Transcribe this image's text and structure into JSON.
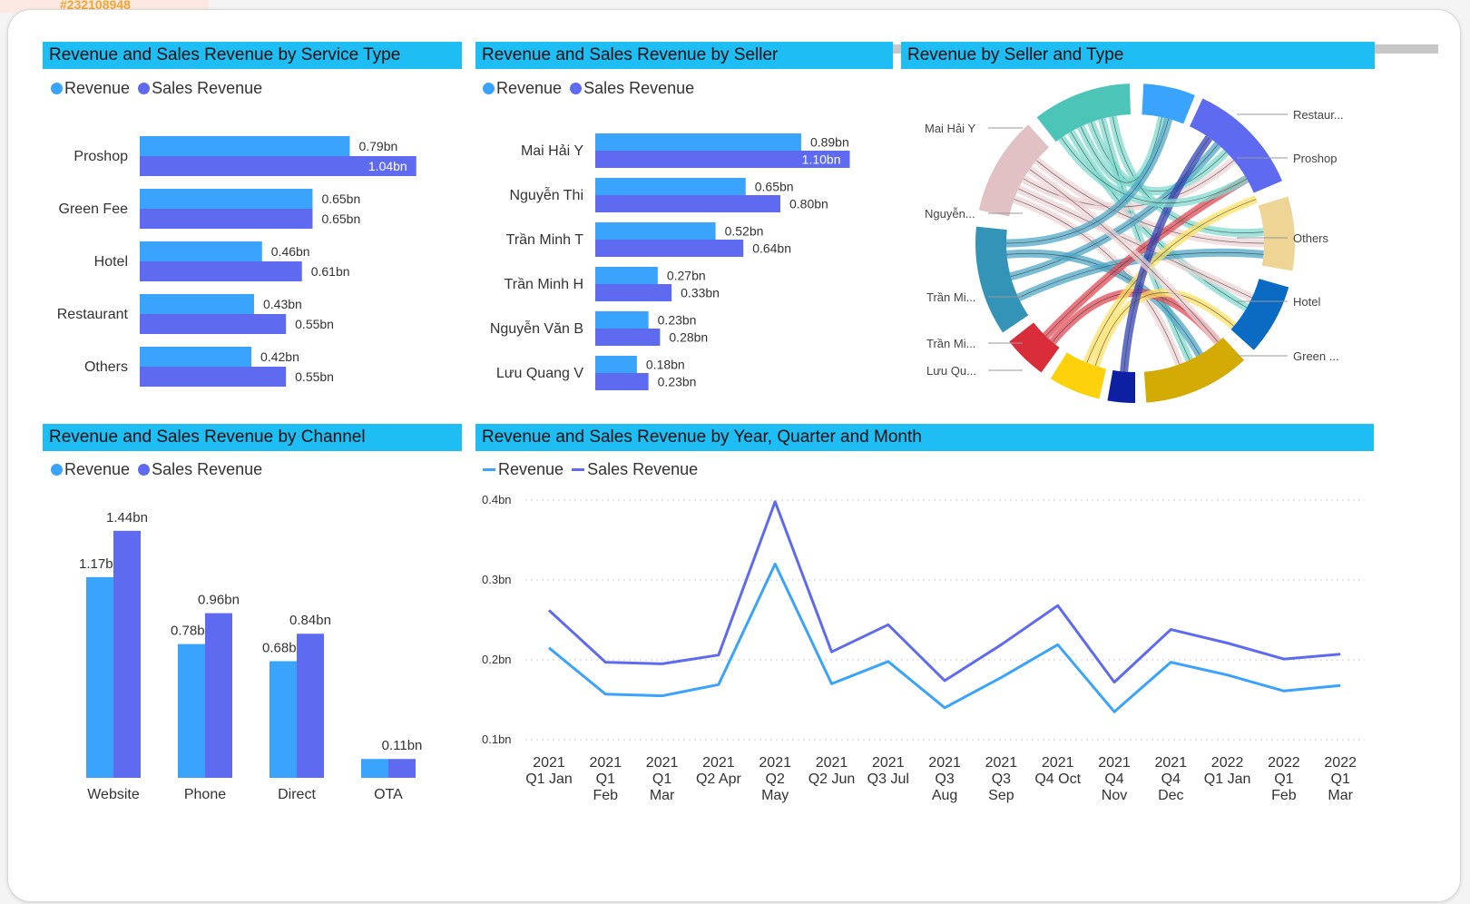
{
  "background": {
    "tag": "#232108948"
  },
  "colors": {
    "revenue": "#3aa3fb",
    "sales": "#5e6bf0",
    "header": "#1ebef5"
  },
  "legend": {
    "revenue": "Revenue",
    "sales": "Sales Revenue"
  },
  "chart_data": [
    {
      "id": "service",
      "type": "bar",
      "orientation": "horizontal",
      "title": "Revenue and Sales Revenue by Service Type",
      "categories": [
        "Proshop",
        "Green Fee",
        "Hotel",
        "Restaurant",
        "Others"
      ],
      "series": [
        {
          "name": "Revenue",
          "values": [
            0.79,
            0.65,
            0.46,
            0.43,
            0.42
          ],
          "labels": [
            "0.79bn",
            "0.65bn",
            "0.46bn",
            "0.43bn",
            "0.42bn"
          ]
        },
        {
          "name": "Sales Revenue",
          "values": [
            1.04,
            0.65,
            0.61,
            0.55,
            0.55
          ],
          "labels": [
            "1.04bn",
            "0.65bn",
            "0.61bn",
            "0.55bn",
            "0.55bn"
          ]
        }
      ],
      "legend_position": "top-left"
    },
    {
      "id": "seller",
      "type": "bar",
      "orientation": "horizontal",
      "title": "Revenue and Sales Revenue by Seller",
      "categories": [
        "Mai Hải Y",
        "Nguyễn Thi",
        "Trần Minh T",
        "Trần Minh H",
        "Nguyễn Văn B",
        "Lưu Quang V"
      ],
      "series": [
        {
          "name": "Revenue",
          "values": [
            0.89,
            0.65,
            0.52,
            0.27,
            0.23,
            0.18
          ],
          "labels": [
            "0.89bn",
            "0.65bn",
            "0.52bn",
            "0.27bn",
            "0.23bn",
            "0.18bn"
          ]
        },
        {
          "name": "Sales Revenue",
          "values": [
            1.1,
            0.8,
            0.64,
            0.33,
            0.28,
            0.23
          ],
          "labels": [
            "1.10bn",
            "0.80bn",
            "0.64bn",
            "0.33bn",
            "0.28bn",
            "0.23bn"
          ]
        }
      ],
      "legend_position": "top-left"
    },
    {
      "id": "chord",
      "type": "chord",
      "title": "Revenue by Seller and Type",
      "nodes_left": [
        "Mai Hải Y",
        "Nguyễn...",
        "Trần Mi...",
        "Trần Mi...",
        "Lưu Qu..."
      ],
      "nodes_right": [
        "Restaur...",
        "Proshop",
        "Others",
        "Hotel",
        "Green ..."
      ]
    },
    {
      "id": "channel",
      "type": "bar",
      "orientation": "vertical",
      "title": "Revenue and Sales Revenue by Channel",
      "categories": [
        "Website",
        "Phone",
        "Direct",
        "OTA"
      ],
      "series": [
        {
          "name": "Revenue",
          "values": [
            1.17,
            0.78,
            0.68,
            0.11
          ],
          "labels": [
            "1.17bn",
            "0.78bn",
            "0.68bn",
            ""
          ]
        },
        {
          "name": "Sales Revenue",
          "values": [
            1.44,
            0.96,
            0.84,
            0.11
          ],
          "labels": [
            "1.44bn",
            "0.96bn",
            "0.84bn",
            "0.11bn"
          ]
        }
      ],
      "legend_position": "top-left"
    },
    {
      "id": "time",
      "type": "line",
      "title": "Revenue and Sales Revenue by Year, Quarter and Month",
      "categories": [
        [
          "2021",
          "Q1 Jan"
        ],
        [
          "2021",
          "Q1",
          "Feb"
        ],
        [
          "2021",
          "Q1",
          "Mar"
        ],
        [
          "2021",
          "Q2 Apr"
        ],
        [
          "2021",
          "Q2",
          "May"
        ],
        [
          "2021",
          "Q2 Jun"
        ],
        [
          "2021",
          "Q3 Jul"
        ],
        [
          "2021",
          "Q3",
          "Aug"
        ],
        [
          "2021",
          "Q3",
          "Sep"
        ],
        [
          "2021",
          "Q4 Oct"
        ],
        [
          "2021",
          "Q4",
          "Nov"
        ],
        [
          "2021",
          "Q4",
          "Dec"
        ],
        [
          "2022",
          "Q1 Jan"
        ],
        [
          "2022",
          "Q1",
          "Feb"
        ],
        [
          "2022",
          "Q1",
          "Mar"
        ]
      ],
      "series": [
        {
          "name": "Revenue",
          "values": [
            0.215,
            0.157,
            0.155,
            0.169,
            0.32,
            0.17,
            0.198,
            0.14,
            0.178,
            0.219,
            0.135,
            0.197,
            0.181,
            0.161,
            0.168
          ]
        },
        {
          "name": "Sales Revenue",
          "values": [
            0.262,
            0.197,
            0.195,
            0.206,
            0.398,
            0.21,
            0.244,
            0.174,
            0.219,
            0.268,
            0.172,
            0.238,
            0.221,
            0.201,
            0.207
          ]
        }
      ],
      "y_ticks": [
        "0.1bn",
        "0.2bn",
        "0.3bn",
        "0.4bn"
      ],
      "ylim": [
        0.1,
        0.4
      ],
      "grid": true,
      "legend_position": "top-left"
    }
  ]
}
